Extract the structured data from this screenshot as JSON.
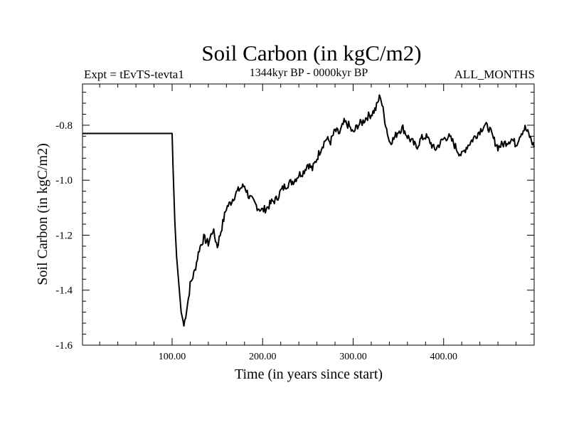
{
  "chart_data": {
    "type": "line",
    "title": "Soil Carbon (in kgC/m2)",
    "subtitle_left": "Expt = tEvTS-tevta1",
    "subtitle_center": "1344kyr BP - 0000kyr BP",
    "subtitle_right": "ALL_MONTHS",
    "xlabel": "Time (in years since start)",
    "ylabel": "Soil Carbon (in kgC/m2)",
    "xlim": [
      1,
      500
    ],
    "ylim": [
      -1.6,
      -0.65
    ],
    "xticks": [
      100,
      200,
      300,
      400
    ],
    "xtick_labels": [
      "100.00",
      "200.00",
      "300.00",
      "400.00"
    ],
    "yticks": [
      -1.6,
      -1.4,
      -1.2,
      -1.0,
      -0.8
    ],
    "ytick_labels": [
      "-1.6",
      "-1.4",
      "-1.2",
      "-1.0",
      "-0.8"
    ],
    "grid": false,
    "series": [
      {
        "name": "Soil Carbon",
        "color": "#000000",
        "x": [
          1,
          100,
          101,
          103,
          105,
          108,
          110,
          112,
          113,
          115,
          118,
          120,
          125,
          130,
          135,
          140,
          145,
          150,
          155,
          160,
          165,
          170,
          175,
          180,
          185,
          190,
          195,
          200,
          205,
          210,
          215,
          220,
          225,
          230,
          235,
          240,
          245,
          250,
          255,
          260,
          265,
          270,
          275,
          280,
          285,
          290,
          295,
          300,
          305,
          310,
          315,
          320,
          325,
          330,
          335,
          340,
          345,
          350,
          355,
          360,
          365,
          370,
          375,
          380,
          385,
          390,
          395,
          400,
          405,
          410,
          415,
          420,
          425,
          430,
          435,
          440,
          445,
          450,
          455,
          460,
          465,
          470,
          475,
          480,
          485,
          490,
          495,
          500
        ],
        "y": [
          -0.83,
          -0.83,
          -0.95,
          -1.15,
          -1.28,
          -1.4,
          -1.48,
          -1.51,
          -1.53,
          -1.49,
          -1.43,
          -1.38,
          -1.33,
          -1.25,
          -1.21,
          -1.23,
          -1.18,
          -1.24,
          -1.17,
          -1.1,
          -1.08,
          -1.05,
          -1.03,
          -1.02,
          -1.06,
          -1.08,
          -1.1,
          -1.11,
          -1.1,
          -1.08,
          -1.07,
          -1.04,
          -1.02,
          -1.01,
          -1.0,
          -0.98,
          -0.97,
          -0.94,
          -0.96,
          -0.92,
          -0.88,
          -0.85,
          -0.86,
          -0.82,
          -0.83,
          -0.79,
          -0.8,
          -0.83,
          -0.8,
          -0.79,
          -0.77,
          -0.76,
          -0.74,
          -0.69,
          -0.78,
          -0.86,
          -0.85,
          -0.82,
          -0.81,
          -0.84,
          -0.86,
          -0.88,
          -0.85,
          -0.84,
          -0.86,
          -0.89,
          -0.87,
          -0.85,
          -0.84,
          -0.86,
          -0.89,
          -0.91,
          -0.88,
          -0.86,
          -0.84,
          -0.82,
          -0.8,
          -0.81,
          -0.85,
          -0.88,
          -0.87,
          -0.86,
          -0.85,
          -0.87,
          -0.83,
          -0.81,
          -0.84,
          -0.88
        ]
      }
    ]
  }
}
